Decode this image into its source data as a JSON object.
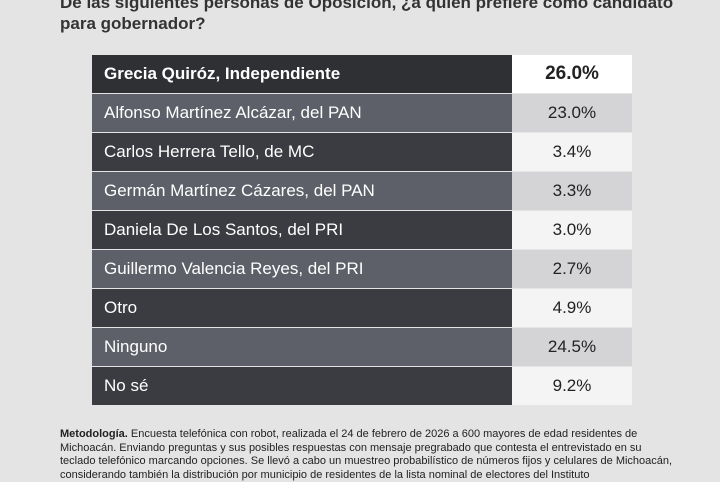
{
  "title": "De las siguientes personas de Oposición, ¿a quién prefiere como candidato para gobernador?",
  "table": {
    "header": [
      "Grecia Quiróz, Independiente",
      "26.0%"
    ],
    "rows": [
      [
        "Alfonso Martínez Alcázar, del PAN",
        "23.0%"
      ],
      [
        "Carlos Herrera Tello, de MC",
        "3.4%"
      ],
      [
        "Germán Martínez Cázares, del PAN",
        "3.3%"
      ],
      [
        "Daniela De Los Santos, del PRI",
        "3.0%"
      ],
      [
        "Guillermo Valencia Reyes, del PRI",
        "2.7%"
      ],
      [
        "Otro",
        "4.9%"
      ],
      [
        "Ninguno",
        "24.5%"
      ],
      [
        "No sé",
        "9.2%"
      ]
    ]
  },
  "methodology": {
    "label": "Metodología.",
    "text": "Encuesta telefónica con robot, realizada el 24 de febrero de 2026 a 600 mayores de edad residentes de Michoacán. Enviando preguntas y sus posibles respuestas con mensaje pregrabado que contesta el entrevistado en su teclado telefónico marcando opciones. Se llevó a cabo un muestreo probabilístico de números fijos y celulares de Michoacán, considerando también la distribución por municipio de residentes de la lista nominal de electores del Instituto"
  }
}
